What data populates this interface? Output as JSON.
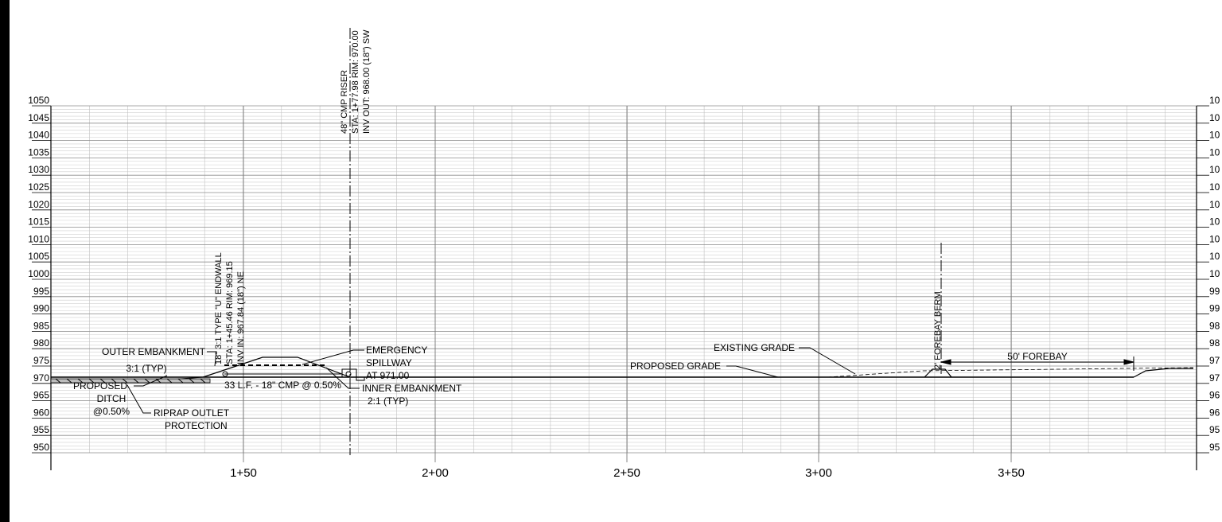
{
  "elevation_labels_left": [
    "1050",
    "1045",
    "1040",
    "1035",
    "1030",
    "1025",
    "1020",
    "1015",
    "1010",
    "1005",
    "1000",
    "995",
    "990",
    "985",
    "980",
    "975",
    "970",
    "965",
    "960",
    "955",
    "950"
  ],
  "elevation_labels_right": [
    "10",
    "10",
    "10",
    "10",
    "10",
    "10",
    "10",
    "10",
    "10",
    "10",
    "10",
    "99",
    "99",
    "98",
    "98",
    "97",
    "97",
    "96",
    "96",
    "95",
    "95"
  ],
  "station_labels": [
    "1+50",
    "2+00",
    "2+50",
    "3+00",
    "3+50"
  ],
  "callouts": {
    "riser": [
      "48\" CMP RISER",
      "STA: 1+77.98  RIM: 970.00",
      "INV OUT: 968.00 (18\") SW"
    ],
    "endwall": [
      "18\" 3:1 TYPE \"U\" ENDWALL",
      "STA: 1+45.46  RIM: 969.15",
      "INV IN: 967.84 (18\") NE"
    ],
    "forebay_berm": "2' FOREBAY BERM",
    "outer_embankment": [
      "OUTER EMBANKMENT",
      "3:1 (TYP)"
    ],
    "proposed_ditch": [
      "PROPOSED",
      "DITCH",
      "@0.50%"
    ],
    "riprap": [
      "RIPRAP OUTLET",
      "PROTECTION"
    ],
    "emergency_spillway": [
      "EMERGENCY",
      "SPILLWAY",
      "AT 971.00"
    ],
    "inner_embankment": [
      "INNER EMBANKMENT",
      "2:1 (TYP)"
    ],
    "pipe": "33 L.F. - 18\" CMP @ 0.50%",
    "proposed_grade": "PROPOSED GRADE",
    "existing_grade": "EXISTING GRADE",
    "forebay_length": "50' FOREBAY"
  }
}
